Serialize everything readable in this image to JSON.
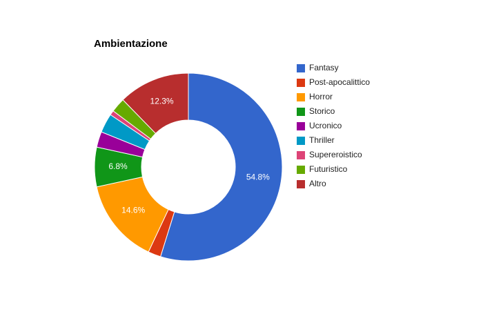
{
  "chart_data": {
    "type": "donut",
    "title": "Ambientazione",
    "categories": [
      "Fantasy",
      "Post-apocalittico",
      "Horror",
      "Storico",
      "Ucronico",
      "Thriller",
      "Supereroistico",
      "Futuristico",
      "Altro"
    ],
    "values": [
      54.8,
      2.2,
      14.6,
      6.8,
      2.7,
      3.3,
      0.8,
      2.5,
      12.3
    ],
    "value_labels": [
      "54.8%",
      null,
      "14.6%",
      "6.8%",
      null,
      null,
      null,
      null,
      "12.3%"
    ],
    "colors": [
      "#3366cc",
      "#dc3912",
      "#ff9900",
      "#109618",
      "#990099",
      "#0099c6",
      "#dd4477",
      "#66aa00",
      "#b82e2e"
    ],
    "legend": "right"
  }
}
